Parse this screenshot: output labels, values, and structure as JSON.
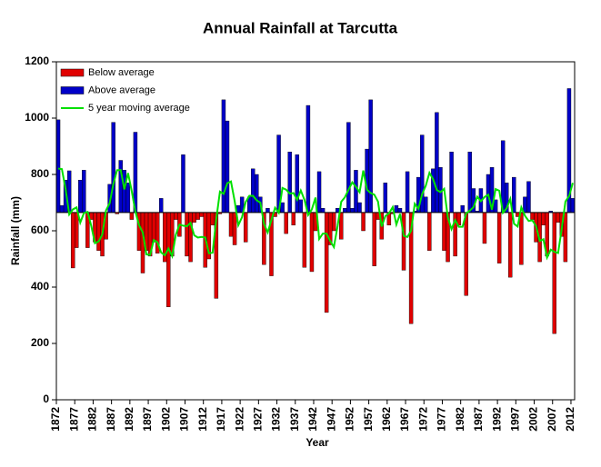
{
  "chart_data": {
    "type": "bar",
    "title": "Annual Rainfall at Tarcutta",
    "xlabel": "Year",
    "ylabel": "Rainfall (mm)",
    "x": [
      1872,
      1873,
      1874,
      1875,
      1876,
      1877,
      1878,
      1879,
      1880,
      1881,
      1882,
      1883,
      1884,
      1885,
      1886,
      1887,
      1888,
      1889,
      1890,
      1891,
      1892,
      1893,
      1894,
      1895,
      1896,
      1897,
      1898,
      1899,
      1900,
      1901,
      1902,
      1903,
      1904,
      1905,
      1906,
      1907,
      1908,
      1909,
      1910,
      1911,
      1912,
      1913,
      1914,
      1915,
      1916,
      1917,
      1918,
      1919,
      1920,
      1921,
      1922,
      1923,
      1924,
      1925,
      1926,
      1927,
      1928,
      1929,
      1930,
      1931,
      1932,
      1933,
      1934,
      1935,
      1936,
      1937,
      1938,
      1939,
      1940,
      1941,
      1942,
      1943,
      1944,
      1945,
      1946,
      1947,
      1948,
      1949,
      1950,
      1951,
      1952,
      1953,
      1954,
      1955,
      1956,
      1957,
      1958,
      1959,
      1960,
      1961,
      1962,
      1963,
      1964,
      1965,
      1966,
      1967,
      1968,
      1969,
      1970,
      1971,
      1972,
      1973,
      1974,
      1975,
      1976,
      1977,
      1978,
      1979,
      1980,
      1981,
      1982,
      1983,
      1984,
      1985,
      1986,
      1987,
      1988,
      1989,
      1990,
      1991,
      1992,
      1993,
      1994,
      1995,
      1996,
      1997,
      1998,
      1999,
      2000,
      2001,
      2002,
      2003,
      2004,
      2005,
      2006,
      2007,
      2008,
      2009,
      2010,
      2011,
      2012
    ],
    "values": [
      994,
      690,
      780,
      813,
      468,
      540,
      780,
      815,
      540,
      640,
      560,
      530,
      510,
      570,
      765,
      985,
      660,
      850,
      815,
      770,
      640,
      950,
      530,
      450,
      530,
      510,
      560,
      520,
      715,
      490,
      330,
      510,
      640,
      580,
      870,
      510,
      490,
      630,
      640,
      650,
      470,
      500,
      620,
      360,
      660,
      1065,
      990,
      580,
      550,
      690,
      720,
      560,
      720,
      820,
      800,
      720,
      480,
      680,
      440,
      650,
      940,
      700,
      590,
      880,
      620,
      870,
      710,
      470,
      1045,
      455,
      600,
      810,
      680,
      310,
      550,
      600,
      680,
      570,
      680,
      985,
      680,
      815,
      700,
      600,
      890,
      1065,
      475,
      640,
      570,
      770,
      620,
      660,
      690,
      680,
      460,
      810,
      270,
      670,
      790,
      940,
      720,
      530,
      820,
      1020,
      825,
      530,
      490,
      880,
      510,
      620,
      690,
      370,
      880,
      750,
      670,
      750,
      555,
      800,
      825,
      710,
      485,
      920,
      770,
      435,
      790,
      650,
      480,
      720,
      775,
      640,
      560,
      490,
      620,
      510,
      670,
      235,
      630,
      580,
      490,
      1105,
      715
    ],
    "baseline": 665,
    "below": {
      "name": "Below average",
      "color": "#e00000"
    },
    "above": {
      "name": "Above average",
      "color": "#0000c8"
    },
    "moving_average": {
      "name": "5 year moving average",
      "color": "#00e000",
      "values": [
        821,
        819,
        749,
        658,
        676,
        683,
        629,
        663,
        667,
        617,
        556,
        562,
        587,
        672,
        698,
        766,
        815,
        816,
        747,
        805,
        741,
        668,
        620,
        594,
        516,
        514,
        567,
        559,
        523,
        513,
        537,
        510,
        586,
        622,
        618,
        616,
        628,
        584,
        576,
        578,
        576,
        520,
        522,
        641,
        739,
        731,
        769,
        775,
        706,
        620,
        648,
        702,
        724,
        724,
        708,
        700,
        624,
        594,
        638,
        682,
        664,
        752,
        746,
        732,
        734,
        710,
        743,
        710,
        656,
        676,
        718,
        571,
        590,
        590,
        564,
        542,
        616,
        703,
        719,
        746,
        772,
        756,
        737,
        814,
        746,
        734,
        728,
        704,
        615,
        652,
        662,
        684,
        622,
        660,
        582,
        578,
        600,
        696,
        678,
        730,
        760,
        806,
        783,
        745,
        737,
        749,
        647,
        606,
        638,
        614,
        614,
        662,
        672,
        684,
        721,
        705,
        720,
        728,
        675,
        748,
        742,
        664,
        680,
        713,
        625,
        615,
        683,
        653,
        635,
        637,
        617,
        564,
        570,
        505,
        533,
        525,
        521,
        608,
        704,
        723,
        770
      ]
    },
    "xlim": [
      1872,
      2013
    ],
    "xticks": [
      1872,
      1877,
      1882,
      1887,
      1892,
      1897,
      1902,
      1907,
      1912,
      1917,
      1922,
      1927,
      1932,
      1937,
      1942,
      1947,
      1952,
      1957,
      1962,
      1967,
      1972,
      1977,
      1982,
      1987,
      1992,
      1997,
      2002,
      2007,
      2012
    ],
    "ylim": [
      0,
      1200
    ],
    "yticks": [
      0,
      200,
      400,
      600,
      800,
      1000,
      1200
    ],
    "legend": "upper left"
  }
}
